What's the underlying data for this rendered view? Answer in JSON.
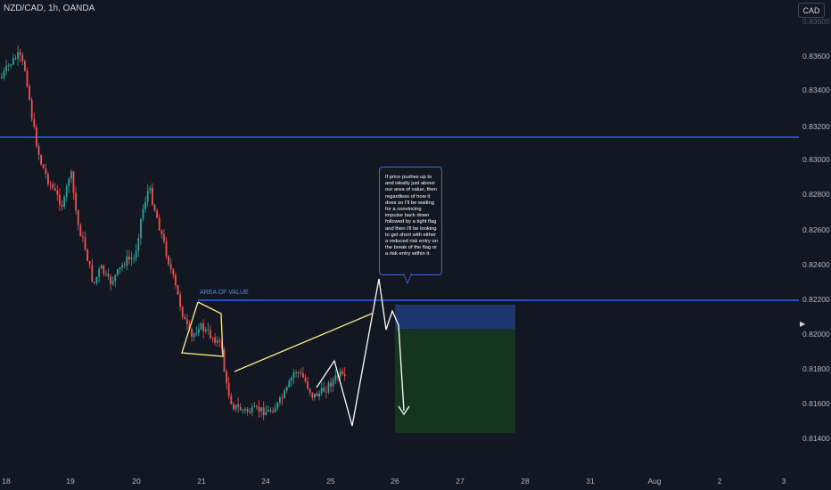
{
  "header": {
    "symbol_title": "NZD/CAD, 1h, OANDA",
    "currency_button": "CAD"
  },
  "price_axis": {
    "ticks": [
      "0.83600",
      "0.83400",
      "0.83200",
      "0.83000",
      "0.82800",
      "0.82600",
      "0.82400",
      "0.82200",
      "0.82000",
      "0.81800",
      "0.81600",
      "0.81400"
    ],
    "top_partial_tick": "0.83600"
  },
  "time_axis": {
    "ticks": [
      "18",
      "19",
      "20",
      "21",
      "24",
      "25",
      "26",
      "27",
      "28",
      "31",
      "Aug",
      "2",
      "3"
    ]
  },
  "annotations": {
    "area_of_value_label": "AREA OF VALUE",
    "callout_text": "If price pushes up to and ideally just above our area of value, then regardless of how it does so I'll be waiting for a convincing impulse back down followed by a tight flag and then I'll be looking to get short with either a reduced risk entry on the break of the flag or a risk entry within it."
  },
  "colors": {
    "background": "#131722",
    "bull_candle": "#26a69a",
    "bear_candle": "#ef5350",
    "horizontal_line": "#2962ff",
    "drawing_line": "#ffee88",
    "projection_path": "#ffffff",
    "stop_zone": "#1e3a78",
    "target_zone": "#14381f"
  },
  "icons": {
    "price_marker": "triangle-right-icon"
  }
}
